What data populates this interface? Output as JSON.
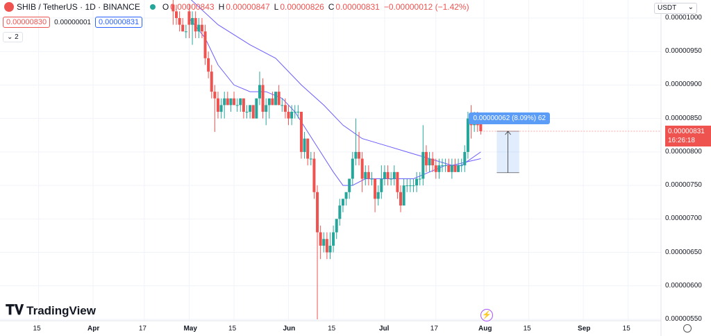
{
  "header": {
    "symbol": "SHIB / TetherUS · 1D · BINANCE",
    "o_label": "O",
    "o_value": "0.00000843",
    "h_label": "H",
    "h_value": "0.00000847",
    "l_label": "L",
    "l_value": "0.00000826",
    "c_label": "C",
    "c_value": "0.00000831",
    "change": "−0.00000012 (−1.42%)",
    "bid": "0.00000830",
    "spread": "0.00000001",
    "ask": "0.00000831",
    "indicators_count": "2"
  },
  "currency": "USDT",
  "price_tag": {
    "price": "0.00000831",
    "countdown": "16:26:18"
  },
  "measure_label": "0.00000062 (8.09%) 62",
  "logo_text": "TradingView",
  "colors": {
    "up": "#26a69a",
    "down": "#ef5350",
    "ma": "#6a5cff",
    "measure": "#5b9cf6"
  },
  "chart_data": {
    "type": "candlestick",
    "title": "SHIB / TetherUS · 1D · BINANCE",
    "ylim": [
      5.45e-06,
      1.02e-05
    ],
    "y_ticks": [
      "0.00001000",
      "0.00000950",
      "0.00000900",
      "0.00000850",
      "0.00000800",
      "0.00000750",
      "0.00000700",
      "0.00000650",
      "0.00000600",
      "0.00000550"
    ],
    "y_tick_values": [
      1e-05,
      9.5e-06,
      9e-06,
      8.5e-06,
      8e-06,
      7.5e-06,
      7e-06,
      6.5e-06,
      6e-06,
      5.5e-06
    ],
    "x_ticks": [
      {
        "label": "15",
        "date": "2023-03-15",
        "month": false
      },
      {
        "label": "Apr",
        "date": "2023-04-01",
        "month": true
      },
      {
        "label": "17",
        "date": "2023-04-17",
        "month": false
      },
      {
        "label": "May",
        "date": "2023-05-01",
        "month": true
      },
      {
        "label": "15",
        "date": "2023-05-15",
        "month": false
      },
      {
        "label": "Jun",
        "date": "2023-06-01",
        "month": true
      },
      {
        "label": "15",
        "date": "2023-06-15",
        "month": false
      },
      {
        "label": "Jul",
        "date": "2023-07-01",
        "month": true
      },
      {
        "label": "17",
        "date": "2023-07-17",
        "month": false
      },
      {
        "label": "Aug",
        "date": "2023-08-01",
        "month": true
      },
      {
        "label": "15",
        "date": "2023-08-15",
        "month": false
      },
      {
        "label": "Sep",
        "date": "2023-09-01",
        "month": true
      },
      {
        "label": "15",
        "date": "2023-09-15",
        "month": false
      }
    ],
    "candles": [
      {
        "date": "2023-04-26",
        "o": 1.02e-05,
        "h": 1.03e-05,
        "l": 9.9e-06,
        "c": 1.01e-05
      },
      {
        "date": "2023-04-27",
        "o": 1.01e-05,
        "h": 1.02e-05,
        "l": 9.9e-06,
        "c": 1e-05
      },
      {
        "date": "2023-04-28",
        "o": 1e-05,
        "h": 1.01e-05,
        "l": 9.8e-06,
        "c": 9.9e-06
      },
      {
        "date": "2023-04-29",
        "o": 9.9e-06,
        "h": 1e-05,
        "l": 9.8e-06,
        "c": 9.8e-06
      },
      {
        "date": "2023-04-30",
        "o": 9.8e-06,
        "h": 9.9e-06,
        "l": 9.7e-06,
        "c": 9.8e-06
      },
      {
        "date": "2023-05-01",
        "o": 1.01e-05,
        "h": 1.02e-05,
        "l": 9.7e-06,
        "c": 9.9e-06
      },
      {
        "date": "2023-05-02",
        "o": 9.9e-06,
        "h": 1.01e-05,
        "l": 9.6e-06,
        "c": 1e-05
      },
      {
        "date": "2023-05-03",
        "o": 1e-05,
        "h": 1.01e-05,
        "l": 9.7e-06,
        "c": 9.8e-06
      },
      {
        "date": "2023-05-04",
        "o": 9.8e-06,
        "h": 1e-05,
        "l": 9.7e-06,
        "c": 9.9e-06
      },
      {
        "date": "2023-05-05",
        "o": 9.9e-06,
        "h": 1e-05,
        "l": 9.7e-06,
        "c": 9.8e-06
      },
      {
        "date": "2023-05-06",
        "o": 9.8e-06,
        "h": 9.9e-06,
        "l": 9.3e-06,
        "c": 9.4e-06
      },
      {
        "date": "2023-05-07",
        "o": 9.4e-06,
        "h": 9.5e-06,
        "l": 9.1e-06,
        "c": 9.2e-06
      },
      {
        "date": "2023-05-08",
        "o": 9.2e-06,
        "h": 9.3e-06,
        "l": 8.8e-06,
        "c": 8.9e-06
      },
      {
        "date": "2023-05-09",
        "o": 8.9e-06,
        "h": 9e-06,
        "l": 8.3e-06,
        "c": 8.8e-06
      },
      {
        "date": "2023-05-10",
        "o": 8.8e-06,
        "h": 8.9e-06,
        "l": 8.5e-06,
        "c": 8.6e-06
      },
      {
        "date": "2023-05-11",
        "o": 8.6e-06,
        "h": 8.8e-06,
        "l": 8.5e-06,
        "c": 8.7e-06
      },
      {
        "date": "2023-05-12",
        "o": 8.7e-06,
        "h": 8.9e-06,
        "l": 8.5e-06,
        "c": 8.8e-06
      },
      {
        "date": "2023-05-13",
        "o": 8.8e-06,
        "h": 8.9e-06,
        "l": 8.7e-06,
        "c": 8.7e-06
      },
      {
        "date": "2023-05-14",
        "o": 8.7e-06,
        "h": 8.8e-06,
        "l": 8.6e-06,
        "c": 8.8e-06
      },
      {
        "date": "2023-05-15",
        "o": 8.8e-06,
        "h": 8.9e-06,
        "l": 8.7e-06,
        "c": 8.7e-06
      },
      {
        "date": "2023-05-16",
        "o": 8.7e-06,
        "h": 8.8e-06,
        "l": 8.6e-06,
        "c": 8.7e-06
      },
      {
        "date": "2023-05-17",
        "o": 8.7e-06,
        "h": 8.8e-06,
        "l": 8.6e-06,
        "c": 8.8e-06
      },
      {
        "date": "2023-05-18",
        "o": 8.8e-06,
        "h": 8.8e-06,
        "l": 8.5e-06,
        "c": 8.6e-06
      },
      {
        "date": "2023-05-19",
        "o": 8.6e-06,
        "h": 8.7e-06,
        "l": 8.5e-06,
        "c": 8.6e-06
      },
      {
        "date": "2023-05-20",
        "o": 8.6e-06,
        "h": 8.7e-06,
        "l": 8.5e-06,
        "c": 8.7e-06
      },
      {
        "date": "2023-05-21",
        "o": 8.7e-06,
        "h": 8.7e-06,
        "l": 8.5e-06,
        "c": 8.5e-06
      },
      {
        "date": "2023-05-22",
        "o": 8.5e-06,
        "h": 8.8e-06,
        "l": 8.5e-06,
        "c": 8.8e-06
      },
      {
        "date": "2023-05-23",
        "o": 8.8e-06,
        "h": 9.2e-06,
        "l": 8.7e-06,
        "c": 9e-06
      },
      {
        "date": "2023-05-24",
        "o": 9e-06,
        "h": 9.1e-06,
        "l": 8.5e-06,
        "c": 8.6e-06
      },
      {
        "date": "2023-05-25",
        "o": 8.6e-06,
        "h": 8.8e-06,
        "l": 8.4e-06,
        "c": 8.7e-06
      },
      {
        "date": "2023-05-26",
        "o": 8.7e-06,
        "h": 8.8e-06,
        "l": 8.5e-06,
        "c": 8.8e-06
      },
      {
        "date": "2023-05-27",
        "o": 8.8e-06,
        "h": 8.9e-06,
        "l": 8.7e-06,
        "c": 8.7e-06
      },
      {
        "date": "2023-05-28",
        "o": 8.7e-06,
        "h": 8.9e-06,
        "l": 8.7e-06,
        "c": 8.9e-06
      },
      {
        "date": "2023-05-29",
        "o": 8.9e-06,
        "h": 9e-06,
        "l": 8.7e-06,
        "c": 8.7e-06
      },
      {
        "date": "2023-05-30",
        "o": 8.7e-06,
        "h": 8.8e-06,
        "l": 8.6e-06,
        "c": 8.7e-06
      },
      {
        "date": "2023-05-31",
        "o": 8.7e-06,
        "h": 8.8e-06,
        "l": 8.5e-06,
        "c": 8.6e-06
      },
      {
        "date": "2023-06-01",
        "o": 8.6e-06,
        "h": 8.7e-06,
        "l": 8.4e-06,
        "c": 8.5e-06
      },
      {
        "date": "2023-06-02",
        "o": 8.5e-06,
        "h": 8.7e-06,
        "l": 8.4e-06,
        "c": 8.6e-06
      },
      {
        "date": "2023-06-03",
        "o": 8.6e-06,
        "h": 8.7e-06,
        "l": 8.5e-06,
        "c": 8.6e-06
      },
      {
        "date": "2023-06-04",
        "o": 8.6e-06,
        "h": 8.7e-06,
        "l": 8.5e-06,
        "c": 8.6e-06
      },
      {
        "date": "2023-06-05",
        "o": 8.6e-06,
        "h": 8.6e-06,
        "l": 7.9e-06,
        "c": 8e-06
      },
      {
        "date": "2023-06-06",
        "o": 8e-06,
        "h": 8.3e-06,
        "l": 7.9e-06,
        "c": 8.2e-06
      },
      {
        "date": "2023-06-07",
        "o": 8.2e-06,
        "h": 8.2e-06,
        "l": 7.8e-06,
        "c": 7.9e-06
      },
      {
        "date": "2023-06-08",
        "o": 7.9e-06,
        "h": 8e-06,
        "l": 7.8e-06,
        "c": 7.9e-06
      },
      {
        "date": "2023-06-09",
        "o": 7.9e-06,
        "h": 8e-06,
        "l": 7.3e-06,
        "c": 7.4e-06
      },
      {
        "date": "2023-06-10",
        "o": 7.4e-06,
        "h": 7.5e-06,
        "l": 5.5e-06,
        "c": 6.8e-06
      },
      {
        "date": "2023-06-11",
        "o": 6.8e-06,
        "h": 6.9e-06,
        "l": 6.4e-06,
        "c": 6.6e-06
      },
      {
        "date": "2023-06-12",
        "o": 6.6e-06,
        "h": 6.8e-06,
        "l": 6.5e-06,
        "c": 6.7e-06
      },
      {
        "date": "2023-06-13",
        "o": 6.7e-06,
        "h": 6.8e-06,
        "l": 6.4e-06,
        "c": 6.5e-06
      },
      {
        "date": "2023-06-14",
        "o": 6.5e-06,
        "h": 6.8e-06,
        "l": 6.4e-06,
        "c": 6.6e-06
      },
      {
        "date": "2023-06-15",
        "o": 6.6e-06,
        "h": 6.9e-06,
        "l": 6.5e-06,
        "c": 6.8e-06
      },
      {
        "date": "2023-06-16",
        "o": 6.8e-06,
        "h": 7e-06,
        "l": 6.7e-06,
        "c": 7e-06
      },
      {
        "date": "2023-06-17",
        "o": 7e-06,
        "h": 7.3e-06,
        "l": 6.9e-06,
        "c": 7.2e-06
      },
      {
        "date": "2023-06-18",
        "o": 7.2e-06,
        "h": 7.3e-06,
        "l": 7.1e-06,
        "c": 7.3e-06
      },
      {
        "date": "2023-06-19",
        "o": 7.3e-06,
        "h": 7.4e-06,
        "l": 7.2e-06,
        "c": 7.4e-06
      },
      {
        "date": "2023-06-20",
        "o": 7.4e-06,
        "h": 7.6e-06,
        "l": 7.3e-06,
        "c": 7.6e-06
      },
      {
        "date": "2023-06-21",
        "o": 7.6e-06,
        "h": 8e-06,
        "l": 7.5e-06,
        "c": 7.9e-06
      },
      {
        "date": "2023-06-22",
        "o": 7.9e-06,
        "h": 8.5e-06,
        "l": 7.8e-06,
        "c": 8e-06
      },
      {
        "date": "2023-06-23",
        "o": 8e-06,
        "h": 8.3e-06,
        "l": 7.8e-06,
        "c": 7.9e-06
      },
      {
        "date": "2023-06-24",
        "o": 7.9e-06,
        "h": 8e-06,
        "l": 7.4e-06,
        "c": 7.6e-06
      },
      {
        "date": "2023-06-25",
        "o": 7.6e-06,
        "h": 7.8e-06,
        "l": 7.5e-06,
        "c": 7.7e-06
      },
      {
        "date": "2023-06-26",
        "o": 7.7e-06,
        "h": 7.8e-06,
        "l": 7.5e-06,
        "c": 7.6e-06
      },
      {
        "date": "2023-06-27",
        "o": 7.6e-06,
        "h": 7.7e-06,
        "l": 7.5e-06,
        "c": 7.6e-06
      },
      {
        "date": "2023-06-28",
        "o": 7.6e-06,
        "h": 7.6e-06,
        "l": 7.1e-06,
        "c": 7.3e-06
      },
      {
        "date": "2023-06-29",
        "o": 7.3e-06,
        "h": 7.5e-06,
        "l": 7.2e-06,
        "c": 7.4e-06
      },
      {
        "date": "2023-06-30",
        "o": 7.4e-06,
        "h": 7.8e-06,
        "l": 7.3e-06,
        "c": 7.6e-06
      },
      {
        "date": "2023-07-01",
        "o": 7.6e-06,
        "h": 7.8e-06,
        "l": 7.5e-06,
        "c": 7.7e-06
      },
      {
        "date": "2023-07-02",
        "o": 7.7e-06,
        "h": 7.8e-06,
        "l": 7.5e-06,
        "c": 7.6e-06
      },
      {
        "date": "2023-07-03",
        "o": 7.6e-06,
        "h": 7.7e-06,
        "l": 7.5e-06,
        "c": 7.6e-06
      },
      {
        "date": "2023-07-04",
        "o": 7.6e-06,
        "h": 7.8e-06,
        "l": 7.5e-06,
        "c": 7.7e-06
      },
      {
        "date": "2023-07-05",
        "o": 7.7e-06,
        "h": 7.7e-06,
        "l": 7.3e-06,
        "c": 7.4e-06
      },
      {
        "date": "2023-07-06",
        "o": 7.4e-06,
        "h": 7.5e-06,
        "l": 7.1e-06,
        "c": 7.2e-06
      },
      {
        "date": "2023-07-07",
        "o": 7.2e-06,
        "h": 7.6e-06,
        "l": 7.2e-06,
        "c": 7.5e-06
      },
      {
        "date": "2023-07-08",
        "o": 7.5e-06,
        "h": 7.6e-06,
        "l": 7.4e-06,
        "c": 7.5e-06
      },
      {
        "date": "2023-07-09",
        "o": 7.5e-06,
        "h": 7.6e-06,
        "l": 7.4e-06,
        "c": 7.5e-06
      },
      {
        "date": "2023-07-10",
        "o": 7.5e-06,
        "h": 7.6e-06,
        "l": 7.4e-06,
        "c": 7.5e-06
      },
      {
        "date": "2023-07-11",
        "o": 7.5e-06,
        "h": 7.7e-06,
        "l": 7.4e-06,
        "c": 7.6e-06
      },
      {
        "date": "2023-07-12",
        "o": 7.6e-06,
        "h": 7.7e-06,
        "l": 7.5e-06,
        "c": 7.6e-06
      },
      {
        "date": "2023-07-13",
        "o": 7.6e-06,
        "h": 8.4e-06,
        "l": 7.5e-06,
        "c": 8e-06
      },
      {
        "date": "2023-07-14",
        "o": 8e-06,
        "h": 8.1e-06,
        "l": 7.7e-06,
        "c": 7.8e-06
      },
      {
        "date": "2023-07-15",
        "o": 7.8e-06,
        "h": 8e-06,
        "l": 7.7e-06,
        "c": 7.9e-06
      },
      {
        "date": "2023-07-16",
        "o": 7.9e-06,
        "h": 8e-06,
        "l": 7.7e-06,
        "c": 7.8e-06
      },
      {
        "date": "2023-07-17",
        "o": 7.8e-06,
        "h": 7.9e-06,
        "l": 7.6e-06,
        "c": 7.7e-06
      },
      {
        "date": "2023-07-18",
        "o": 7.7e-06,
        "h": 7.9e-06,
        "l": 7.6e-06,
        "c": 7.8e-06
      },
      {
        "date": "2023-07-19",
        "o": 7.8e-06,
        "h": 7.9e-06,
        "l": 7.7e-06,
        "c": 7.8e-06
      },
      {
        "date": "2023-07-20",
        "o": 7.8e-06,
        "h": 7.9e-06,
        "l": 7.7e-06,
        "c": 7.8e-06
      },
      {
        "date": "2023-07-21",
        "o": 7.8e-06,
        "h": 7.9e-06,
        "l": 7.7e-06,
        "c": 7.7e-06
      },
      {
        "date": "2023-07-22",
        "o": 7.7e-06,
        "h": 7.9e-06,
        "l": 7.6e-06,
        "c": 7.8e-06
      },
      {
        "date": "2023-07-23",
        "o": 7.8e-06,
        "h": 7.9e-06,
        "l": 7.7e-06,
        "c": 7.7e-06
      },
      {
        "date": "2023-07-24",
        "o": 7.7e-06,
        "h": 7.9e-06,
        "l": 7.7e-06,
        "c": 7.8e-06
      },
      {
        "date": "2023-07-25",
        "o": 7.8e-06,
        "h": 7.9e-06,
        "l": 7.7e-06,
        "c": 7.8e-06
      },
      {
        "date": "2023-07-26",
        "o": 7.8e-06,
        "h": 8.1e-06,
        "l": 7.7e-06,
        "c": 8e-06
      },
      {
        "date": "2023-07-27",
        "o": 8e-06,
        "h": 8.6e-06,
        "l": 7.9e-06,
        "c": 8.5e-06
      },
      {
        "date": "2023-07-28",
        "o": 8.5e-06,
        "h": 8.7e-06,
        "l": 8.2e-06,
        "c": 8.4e-06
      },
      {
        "date": "2023-07-29",
        "o": 8.4e-06,
        "h": 8.6e-06,
        "l": 8.3e-06,
        "c": 8.5e-06
      },
      {
        "date": "2023-07-30",
        "o": 8.5e-06,
        "h": 8.6e-06,
        "l": 8.3e-06,
        "c": 8.4e-06
      },
      {
        "date": "2023-07-31",
        "o": 8.43e-06,
        "h": 8.47e-06,
        "l": 8.26e-06,
        "c": 8.31e-06
      }
    ],
    "ma_fast": [
      [
        "2023-05-01",
        1e-05
      ],
      [
        "2023-05-06",
        9.7e-06
      ],
      [
        "2023-05-10",
        9.3e-06
      ],
      [
        "2023-05-15",
        9e-06
      ],
      [
        "2023-05-20",
        8.9e-06
      ],
      [
        "2023-05-25",
        8.9e-06
      ],
      [
        "2023-05-30",
        8.8e-06
      ],
      [
        "2023-06-03",
        8.6e-06
      ],
      [
        "2023-06-07",
        8.3e-06
      ],
      [
        "2023-06-11",
        8e-06
      ],
      [
        "2023-06-15",
        7.7e-06
      ],
      [
        "2023-06-18",
        7.5e-06
      ],
      [
        "2023-06-21",
        7.5e-06
      ],
      [
        "2023-06-25",
        7.6e-06
      ],
      [
        "2023-06-30",
        7.6e-06
      ],
      [
        "2023-07-05",
        7.6e-06
      ],
      [
        "2023-07-10",
        7.6e-06
      ],
      [
        "2023-07-15",
        7.7e-06
      ],
      [
        "2023-07-20",
        7.8e-06
      ],
      [
        "2023-07-25",
        7.8e-06
      ],
      [
        "2023-07-31",
        8e-06
      ]
    ],
    "ma_slow": [
      [
        "2023-05-01",
        1.03e-05
      ],
      [
        "2023-05-10",
        9.9e-06
      ],
      [
        "2023-05-20",
        9.6e-06
      ],
      [
        "2023-05-28",
        9.4e-06
      ],
      [
        "2023-06-05",
        9e-06
      ],
      [
        "2023-06-12",
        8.7e-06
      ],
      [
        "2023-06-18",
        8.4e-06
      ],
      [
        "2023-06-24",
        8.2e-06
      ],
      [
        "2023-07-01",
        8.1e-06
      ],
      [
        "2023-07-08",
        8e-06
      ],
      [
        "2023-07-15",
        7.9e-06
      ],
      [
        "2023-07-22",
        7.8e-06
      ],
      [
        "2023-07-31",
        7.9e-06
      ]
    ],
    "measure": {
      "from_price": 7.69e-06,
      "to_price": 8.31e-06,
      "from_date": "2023-08-05",
      "to_date": "2023-08-12"
    }
  }
}
